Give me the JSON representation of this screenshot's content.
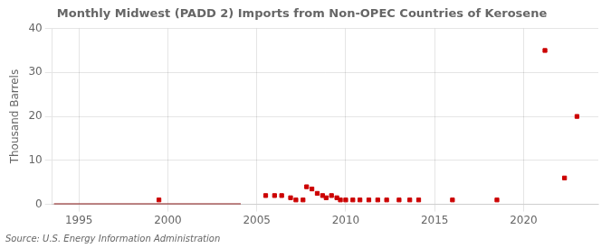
{
  "chart_data": {
    "type": "scatter",
    "title": "Monthly Midwest (PADD 2) Imports from Non-OPEC Countries of Kerosene",
    "ylabel": "Thousand Barrels",
    "annotation": "Source: U.S. Energy Information Administration",
    "xlim": [
      1993.5,
      2024.2
    ],
    "xticks": [
      1995,
      2000,
      2005,
      2010,
      2015,
      2020
    ],
    "ylim": [
      0,
      40
    ],
    "yticks": [
      0,
      10,
      20,
      30,
      40
    ],
    "grid": true,
    "series": [
      {
        "type": "line",
        "color": "#8b1a1a",
        "line_style": "solid",
        "x": [
          1993.6,
          2004.1
        ],
        "values": [
          0,
          0
        ]
      },
      {
        "type": "scatter",
        "color": "#cc0000",
        "marker": "square",
        "x": [
          1999.5,
          2005.5,
          2006.0,
          2006.4,
          2006.9,
          2007.2,
          2007.6,
          2007.8,
          2008.1,
          2008.4,
          2008.7,
          2008.9,
          2009.2,
          2009.5,
          2009.7,
          2010.0,
          2010.4,
          2010.8,
          2011.3,
          2011.8,
          2012.3,
          2013.0,
          2013.6,
          2014.1,
          2016.0,
          2018.5,
          2021.2,
          2022.3,
          2023.0
        ],
        "values": [
          1,
          2,
          2,
          2,
          1.5,
          1,
          1,
          4,
          3.5,
          2.5,
          2,
          1.5,
          2,
          1.5,
          1,
          1,
          1,
          1,
          1,
          1,
          1,
          1,
          1,
          1,
          1,
          1,
          35,
          6,
          20
        ]
      }
    ]
  }
}
